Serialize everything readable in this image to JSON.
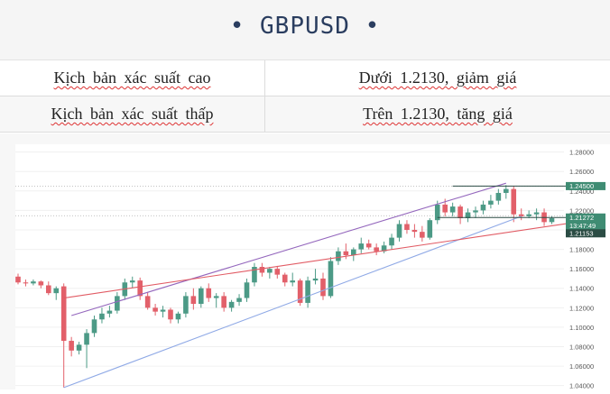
{
  "header": {
    "title": "GBPUSD"
  },
  "table": {
    "rows": [
      {
        "label": "Kịch bản xác suất cao",
        "value": "Dưới 1.2130, giảm giá"
      },
      {
        "label": "Kịch bản xác suất thấp",
        "value": "Trên 1.2130, tăng giá"
      }
    ]
  },
  "colors": {
    "up_candle": "#4c9a86",
    "down_candle": "#e2606a",
    "resistance_line": "#9467bd",
    "support_line": "#8fa9e6",
    "trend_line": "#e15b64",
    "badge_dark": "#2b4c44",
    "badge_green": "#3f8c73"
  },
  "chart_data": {
    "type": "candlestick",
    "symbol": "GBPUSD",
    "y_ticks": [
      "1.28000",
      "1.26000",
      "1.24000",
      "1.22000",
      "1.20000",
      "1.18000",
      "1.16000",
      "1.14000",
      "1.12000",
      "1.10000",
      "1.08000",
      "1.06000",
      "1.04000"
    ],
    "ylim": [
      1.036,
      1.288
    ],
    "candles": [
      [
        1.152,
        1.155,
        1.144,
        1.146
      ],
      [
        1.146,
        1.149,
        1.142,
        1.145
      ],
      [
        1.145,
        1.149,
        1.143,
        1.147
      ],
      [
        1.147,
        1.148,
        1.14,
        1.143
      ],
      [
        1.143,
        1.147,
        1.133,
        1.135
      ],
      [
        1.135,
        1.142,
        1.128,
        1.14
      ],
      [
        1.142,
        1.145,
        1.038,
        1.086
      ],
      [
        1.086,
        1.09,
        1.07,
        1.076
      ],
      [
        1.076,
        1.085,
        1.072,
        1.082
      ],
      [
        1.082,
        1.098,
        1.058,
        1.094
      ],
      [
        1.094,
        1.112,
        1.09,
        1.108
      ],
      [
        1.108,
        1.12,
        1.104,
        1.114
      ],
      [
        1.114,
        1.122,
        1.11,
        1.117
      ],
      [
        1.117,
        1.136,
        1.114,
        1.132
      ],
      [
        1.132,
        1.15,
        1.128,
        1.146
      ],
      [
        1.146,
        1.152,
        1.14,
        1.148
      ],
      [
        1.148,
        1.151,
        1.128,
        1.132
      ],
      [
        1.132,
        1.136,
        1.118,
        1.12
      ],
      [
        1.12,
        1.124,
        1.112,
        1.116
      ],
      [
        1.116,
        1.122,
        1.11,
        1.118
      ],
      [
        1.118,
        1.12,
        1.104,
        1.108
      ],
      [
        1.108,
        1.116,
        1.104,
        1.114
      ],
      [
        1.114,
        1.136,
        1.11,
        1.132
      ],
      [
        1.132,
        1.14,
        1.118,
        1.124
      ],
      [
        1.124,
        1.142,
        1.12,
        1.14
      ],
      [
        1.14,
        1.145,
        1.126,
        1.13
      ],
      [
        1.13,
        1.135,
        1.12,
        1.132
      ],
      [
        1.132,
        1.136,
        1.116,
        1.12
      ],
      [
        1.12,
        1.128,
        1.116,
        1.126
      ],
      [
        1.126,
        1.134,
        1.122,
        1.13
      ],
      [
        1.13,
        1.15,
        1.126,
        1.146
      ],
      [
        1.146,
        1.166,
        1.142,
        1.162
      ],
      [
        1.162,
        1.166,
        1.152,
        1.156
      ],
      [
        1.156,
        1.162,
        1.15,
        1.16
      ],
      [
        1.16,
        1.163,
        1.15,
        1.154
      ],
      [
        1.154,
        1.156,
        1.142,
        1.146
      ],
      [
        1.146,
        1.156,
        1.142,
        1.148
      ],
      [
        1.148,
        1.15,
        1.122,
        1.125
      ],
      [
        1.125,
        1.152,
        1.12,
        1.148
      ],
      [
        1.148,
        1.16,
        1.144,
        1.15
      ],
      [
        1.15,
        1.156,
        1.128,
        1.132
      ],
      [
        1.132,
        1.172,
        1.13,
        1.168
      ],
      [
        1.168,
        1.182,
        1.164,
        1.178
      ],
      [
        1.178,
        1.186,
        1.17,
        1.174
      ],
      [
        1.174,
        1.182,
        1.168,
        1.18
      ],
      [
        1.18,
        1.192,
        1.176,
        1.186
      ],
      [
        1.186,
        1.19,
        1.18,
        1.182
      ],
      [
        1.182,
        1.186,
        1.174,
        1.178
      ],
      [
        1.178,
        1.188,
        1.176,
        1.184
      ],
      [
        1.184,
        1.196,
        1.18,
        1.192
      ],
      [
        1.192,
        1.21,
        1.188,
        1.206
      ],
      [
        1.206,
        1.21,
        1.196,
        1.2
      ],
      [
        1.2,
        1.206,
        1.192,
        1.198
      ],
      [
        1.198,
        1.204,
        1.188,
        1.192
      ],
      [
        1.192,
        1.212,
        1.19,
        1.21
      ],
      [
        1.21,
        1.23,
        1.206,
        1.226
      ],
      [
        1.226,
        1.232,
        1.214,
        1.218
      ],
      [
        1.218,
        1.228,
        1.214,
        1.224
      ],
      [
        1.224,
        1.226,
        1.206,
        1.212
      ],
      [
        1.212,
        1.222,
        1.208,
        1.218
      ],
      [
        1.218,
        1.224,
        1.212,
        1.22
      ],
      [
        1.22,
        1.23,
        1.216,
        1.226
      ],
      [
        1.226,
        1.236,
        1.222,
        1.23
      ],
      [
        1.23,
        1.242,
        1.226,
        1.238
      ],
      [
        1.238,
        1.246,
        1.232,
        1.242
      ],
      [
        1.242,
        1.245,
        1.208,
        1.216
      ],
      [
        1.216,
        1.222,
        1.21,
        1.214
      ],
      [
        1.214,
        1.22,
        1.212,
        1.216
      ],
      [
        1.216,
        1.222,
        1.21,
        1.218
      ],
      [
        1.218,
        1.222,
        1.204,
        1.208
      ],
      [
        1.208,
        1.214,
        1.206,
        1.212
      ]
    ],
    "lines": [
      {
        "name": "resistance",
        "from": [
          7,
          1.112
        ],
        "to": [
          64,
          1.248
        ]
      },
      {
        "name": "support",
        "from": [
          6,
          1.038
        ],
        "to": [
          66,
          1.214
        ]
      },
      {
        "name": "trend",
        "from": [
          6,
          1.13
        ],
        "to": [
          75,
          1.21
        ]
      }
    ],
    "levels": [
      {
        "price": 1.245,
        "label": "1.24500",
        "style": "green"
      },
      {
        "price": 1.21272,
        "label": "1.21272",
        "sub_label": "13:47:49",
        "style": "green"
      },
      {
        "price": 1.21153,
        "label": "1.21153",
        "style": "dark"
      }
    ]
  }
}
